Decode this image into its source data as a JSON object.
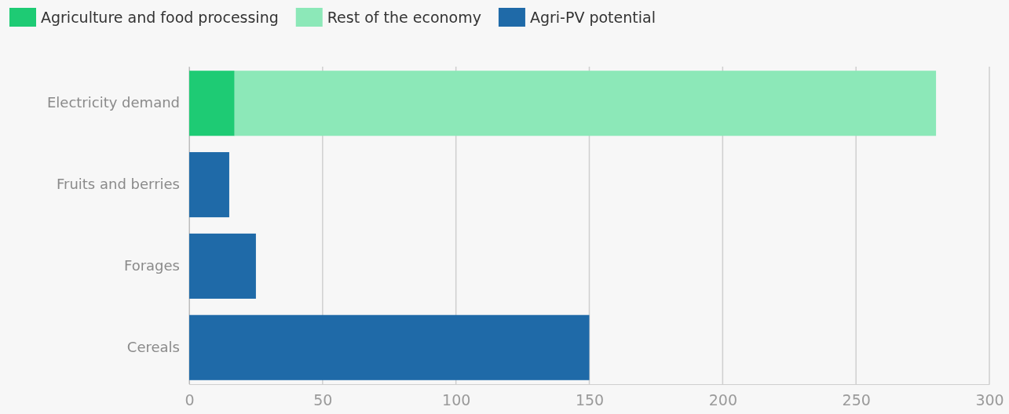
{
  "chart_data": {
    "type": "bar",
    "orientation": "horizontal",
    "stacked": true,
    "categories": [
      "Electricity demand",
      "Fruits and berries",
      "Forages",
      "Cereals"
    ],
    "series": [
      {
        "name": "Agriculture and food processing",
        "color": "#1ecb74",
        "values": [
          17,
          null,
          null,
          null
        ]
      },
      {
        "name": "Rest of the economy",
        "color": "#8ce8b8",
        "values": [
          263,
          null,
          null,
          null
        ]
      },
      {
        "name": "Agri-PV potential",
        "color": "#1f6aa8",
        "values": [
          null,
          15,
          25,
          150
        ]
      }
    ],
    "xlim": [
      0,
      300
    ],
    "xticks": [
      0,
      50,
      100,
      150,
      200,
      250,
      300
    ],
    "grid": "x",
    "legend": "top left"
  }
}
